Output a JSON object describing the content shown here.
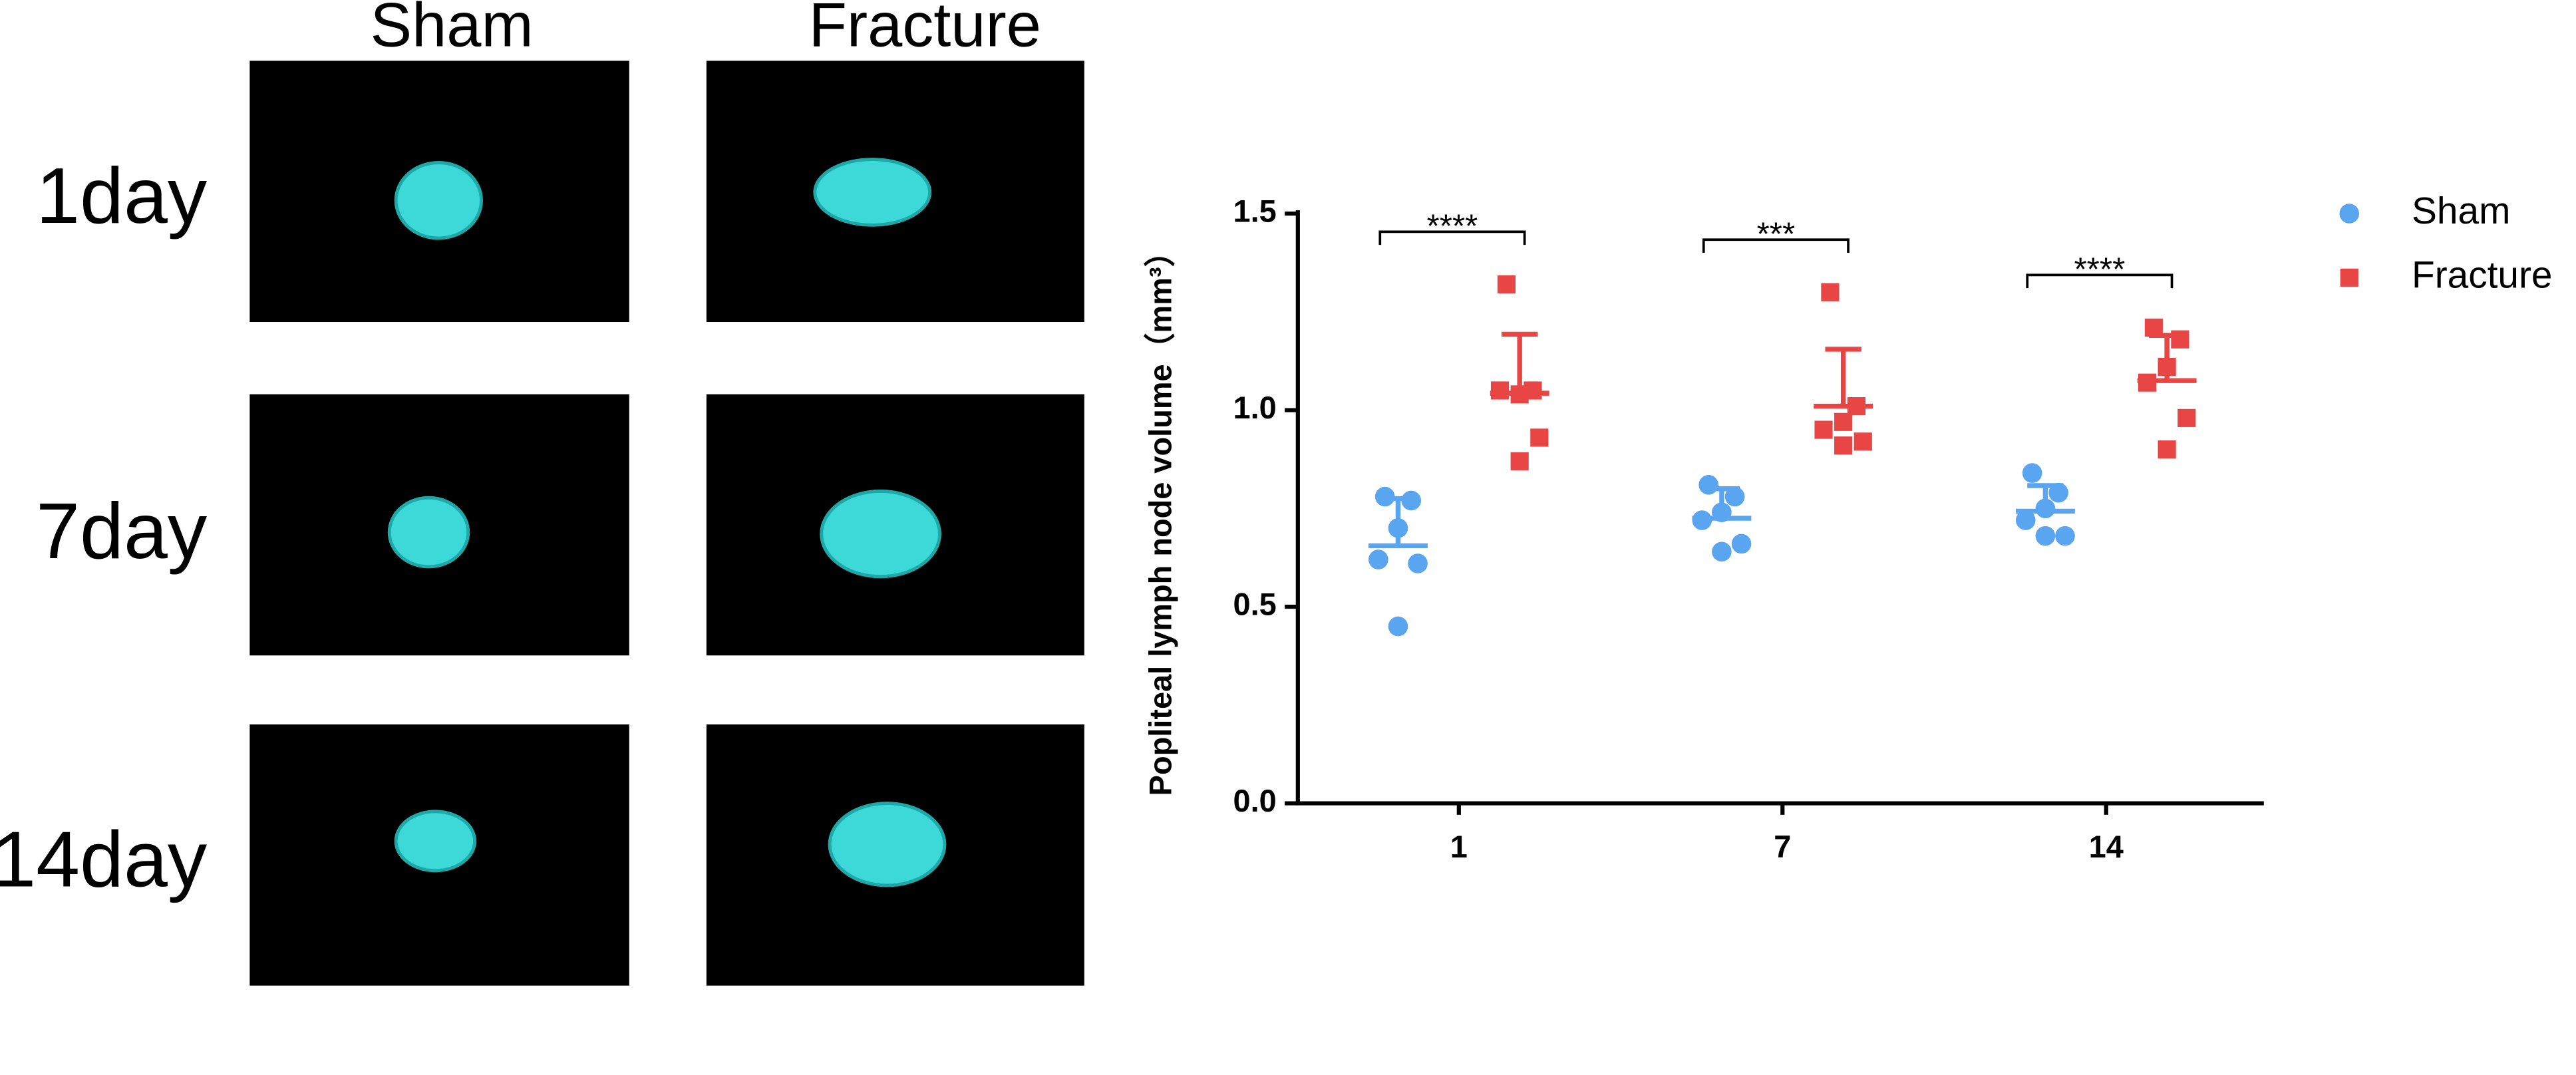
{
  "panels": {
    "columns": [
      "Sham",
      "Fracture"
    ],
    "rows": [
      "1day",
      "7day",
      "14day"
    ]
  },
  "chart_data": {
    "type": "scatter",
    "ylabel": "Popliteal lymph node volume（mm³）",
    "categories": [
      "1",
      "7",
      "14"
    ],
    "ylim": [
      0,
      1.5
    ],
    "yticks": [
      {
        "value": 0,
        "label": "0.0"
      },
      {
        "value": 0.5,
        "label": "0.5"
      },
      {
        "value": 1,
        "label": "1.0"
      },
      {
        "value": 1.5,
        "label": "1.5"
      }
    ],
    "legend": "top-right",
    "annotations": [
      "****",
      "***",
      "****"
    ],
    "series": [
      {
        "name": "Sham",
        "color": "#5aa5f0",
        "marker": "circle",
        "values": [
          [
            0.78,
            0.77,
            0.7,
            0.62,
            0.61,
            0.45
          ],
          [
            0.81,
            0.78,
            0.74,
            0.72,
            0.66,
            0.64
          ],
          [
            0.84,
            0.79,
            0.75,
            0.72,
            0.68,
            0.68
          ]
        ],
        "means": [
          0.655,
          0.725,
          0.743
        ],
        "errors": [
          0.12,
          0.075,
          0.065
        ]
      },
      {
        "name": "Fracture",
        "color": "#e84545",
        "marker": "square",
        "values": [
          [
            1.32,
            1.05,
            1.04,
            1.05,
            0.93,
            0.87
          ],
          [
            1.3,
            1.01,
            0.97,
            0.95,
            0.92,
            0.91
          ],
          [
            1.21,
            1.18,
            1.11,
            1.07,
            0.98,
            0.9
          ]
        ],
        "means": [
          1.043,
          1.01,
          1.075
        ],
        "errors": [
          0.15,
          0.145,
          0.115
        ]
      }
    ]
  }
}
